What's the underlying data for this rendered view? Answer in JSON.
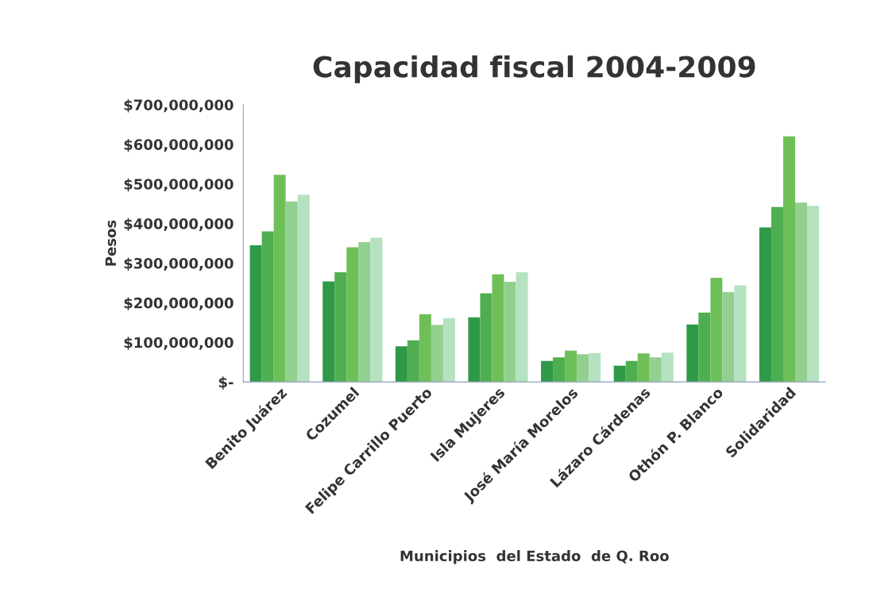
{
  "chart_data": {
    "type": "bar",
    "title": "Capacidad fiscal 2004-2009",
    "xlabel": "Municipios  del Estado  de Q. Roo",
    "ylabel": "Pesos",
    "categories": [
      "Benito Juárez",
      "Cozumel",
      "Felipe Carrillo Puerto",
      "Isla Mujeres",
      "José María Morelos",
      "Lázaro Cárdenas",
      "Othón P. Blanco",
      "Solidaridad"
    ],
    "series": [
      {
        "color": "#2e9a48",
        "values": [
          345000000,
          254000000,
          90000000,
          163000000,
          53000000,
          41000000,
          145000000,
          390000000
        ]
      },
      {
        "color": "#4fae50",
        "values": [
          380000000,
          277000000,
          105000000,
          224000000,
          62000000,
          53000000,
          175000000,
          442000000
        ]
      },
      {
        "color": "#6fbf58",
        "values": [
          523000000,
          340000000,
          171000000,
          272000000,
          79000000,
          72000000,
          263000000,
          620000000
        ]
      },
      {
        "color": "#93d08f",
        "values": [
          456000000,
          353000000,
          144000000,
          253000000,
          70000000,
          62000000,
          227000000,
          453000000
        ]
      },
      {
        "color": "#b5e2c0",
        "values": [
          473000000,
          364000000,
          161000000,
          277000000,
          73000000,
          74000000,
          244000000,
          445000000
        ]
      }
    ],
    "ylim": [
      0,
      700000000
    ],
    "yticks": [
      {
        "value": 0,
        "label": "$-"
      },
      {
        "value": 100000000,
        "label": "$100,000,000"
      },
      {
        "value": 200000000,
        "label": "$200,000,000"
      },
      {
        "value": 300000000,
        "label": "$300,000,000"
      },
      {
        "value": 400000000,
        "label": "$400,000,000"
      },
      {
        "value": 500000000,
        "label": "$500,000,000"
      },
      {
        "value": 600000000,
        "label": "$600,000,000"
      },
      {
        "value": 700000000,
        "label": "$700,000,000"
      }
    ],
    "grid": false
  }
}
